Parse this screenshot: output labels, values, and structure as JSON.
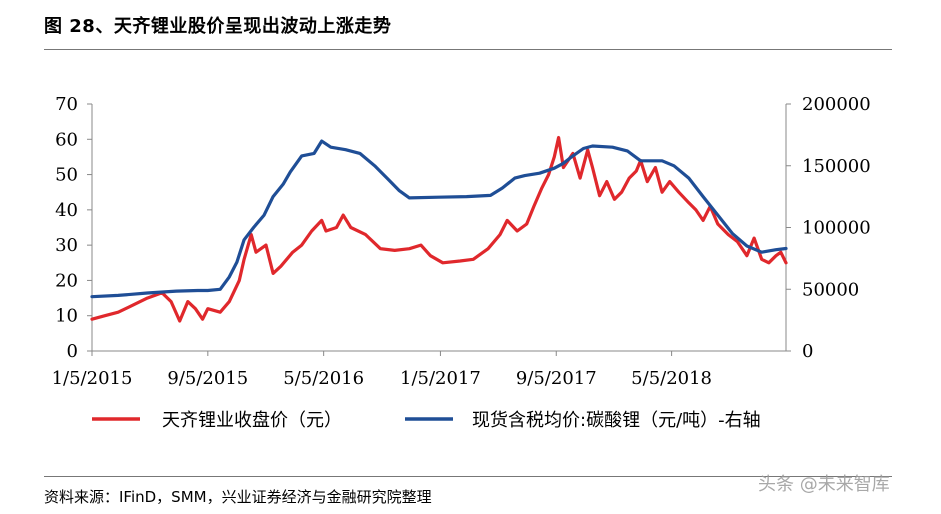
{
  "figure": {
    "title": "图 28、天齐锂业股价呈现出波动上涨走势",
    "source": "资料来源：IFinD，SMM，兴业证券经济与金融研究院整理",
    "watermark": "头条 @未来智库"
  },
  "colors": {
    "stock": "#e0282c",
    "lithium": "#1f4e96"
  },
  "chart_data": {
    "type": "line",
    "title": "图 28、天齐锂业股价呈现出波动上涨走势",
    "x_tick_labels": [
      "1/5/2015",
      "9/5/2015",
      "5/5/2016",
      "1/5/2017",
      "9/5/2017",
      "5/5/2018"
    ],
    "xlim": [
      "2015-01-05",
      "2018-12-31"
    ],
    "y_left": {
      "ticks": [
        "0",
        "10",
        "20",
        "30",
        "40",
        "50",
        "60",
        "70"
      ],
      "range": [
        0,
        70
      ]
    },
    "y_right": {
      "ticks": [
        "0",
        "50000",
        "100000",
        "150000",
        "200000"
      ],
      "range": [
        0,
        200000
      ]
    },
    "series": [
      {
        "name": "天齐锂业收盘价（元）",
        "axis": "left",
        "color": "#e0282c",
        "points": [
          [
            "2015-01-05",
            9
          ],
          [
            "2015-02-01",
            10
          ],
          [
            "2015-03-01",
            11
          ],
          [
            "2015-04-01",
            13
          ],
          [
            "2015-05-01",
            15
          ],
          [
            "2015-06-01",
            16.5
          ],
          [
            "2015-06-20",
            14
          ],
          [
            "2015-07-08",
            8.5
          ],
          [
            "2015-07-25",
            14
          ],
          [
            "2015-08-10",
            12
          ],
          [
            "2015-08-25",
            9
          ],
          [
            "2015-09-05",
            12
          ],
          [
            "2015-10-01",
            11
          ],
          [
            "2015-10-20",
            14
          ],
          [
            "2015-11-10",
            20
          ],
          [
            "2015-11-20",
            26
          ],
          [
            "2015-12-05",
            33
          ],
          [
            "2015-12-15",
            28
          ],
          [
            "2016-01-05",
            30
          ],
          [
            "2016-01-20",
            22
          ],
          [
            "2016-02-05",
            24
          ],
          [
            "2016-03-01",
            28
          ],
          [
            "2016-03-20",
            30
          ],
          [
            "2016-04-10",
            34
          ],
          [
            "2016-05-01",
            37
          ],
          [
            "2016-05-10",
            34
          ],
          [
            "2016-06-01",
            35
          ],
          [
            "2016-06-15",
            38.5
          ],
          [
            "2016-07-01",
            35
          ],
          [
            "2016-08-01",
            33
          ],
          [
            "2016-09-01",
            29
          ],
          [
            "2016-10-01",
            28.5
          ],
          [
            "2016-11-01",
            29
          ],
          [
            "2016-11-25",
            30
          ],
          [
            "2016-12-15",
            27
          ],
          [
            "2017-01-10",
            25
          ],
          [
            "2017-02-15",
            25.5
          ],
          [
            "2017-03-15",
            26
          ],
          [
            "2017-04-15",
            29
          ],
          [
            "2017-05-10",
            33
          ],
          [
            "2017-05-25",
            37
          ],
          [
            "2017-06-15",
            34
          ],
          [
            "2017-07-05",
            36
          ],
          [
            "2017-07-20",
            41
          ],
          [
            "2017-08-05",
            46
          ],
          [
            "2017-08-20",
            50
          ],
          [
            "2017-09-01",
            55
          ],
          [
            "2017-09-10",
            60.5
          ],
          [
            "2017-09-20",
            52
          ],
          [
            "2017-10-10",
            56
          ],
          [
            "2017-10-25",
            49
          ],
          [
            "2017-11-10",
            57
          ],
          [
            "2017-11-20",
            52
          ],
          [
            "2017-12-05",
            44
          ],
          [
            "2017-12-20",
            48
          ],
          [
            "2018-01-05",
            43
          ],
          [
            "2018-01-20",
            45
          ],
          [
            "2018-02-05",
            49
          ],
          [
            "2018-02-20",
            51
          ],
          [
            "2018-03-01",
            54
          ],
          [
            "2018-03-15",
            48
          ],
          [
            "2018-04-01",
            52
          ],
          [
            "2018-04-15",
            45
          ],
          [
            "2018-05-01",
            48
          ],
          [
            "2018-05-20",
            45
          ],
          [
            "2018-06-10",
            42
          ],
          [
            "2018-06-25",
            40
          ],
          [
            "2018-07-10",
            37
          ],
          [
            "2018-07-25",
            41
          ],
          [
            "2018-08-10",
            36
          ],
          [
            "2018-09-01",
            33
          ],
          [
            "2018-09-20",
            31
          ],
          [
            "2018-10-10",
            27
          ],
          [
            "2018-10-25",
            32
          ],
          [
            "2018-11-10",
            26
          ],
          [
            "2018-11-25",
            25
          ],
          [
            "2018-12-10",
            27
          ],
          [
            "2018-12-20",
            28
          ],
          [
            "2018-12-31",
            25
          ]
        ]
      },
      {
        "name": "现货含税均价:碳酸锂（元/吨）-右轴",
        "axis": "right",
        "color": "#1f4e96",
        "points": [
          [
            "2015-01-05",
            44000
          ],
          [
            "2015-03-01",
            45000
          ],
          [
            "2015-05-01",
            47000
          ],
          [
            "2015-07-01",
            48500
          ],
          [
            "2015-08-15",
            49000
          ],
          [
            "2015-09-05",
            49000
          ],
          [
            "2015-10-01",
            50000
          ],
          [
            "2015-10-20",
            60000
          ],
          [
            "2015-11-05",
            72000
          ],
          [
            "2015-11-20",
            90000
          ],
          [
            "2015-12-10",
            100000
          ],
          [
            "2016-01-01",
            110000
          ],
          [
            "2016-01-20",
            125000
          ],
          [
            "2016-02-10",
            135000
          ],
          [
            "2016-02-25",
            145000
          ],
          [
            "2016-03-20",
            158000
          ],
          [
            "2016-04-15",
            160000
          ],
          [
            "2016-05-01",
            170000
          ],
          [
            "2016-05-20",
            165000
          ],
          [
            "2016-06-20",
            163000
          ],
          [
            "2016-07-20",
            160000
          ],
          [
            "2016-08-20",
            150000
          ],
          [
            "2016-09-15",
            140000
          ],
          [
            "2016-10-10",
            130000
          ],
          [
            "2016-11-01",
            124000
          ],
          [
            "2017-01-01",
            124500
          ],
          [
            "2017-03-01",
            125000
          ],
          [
            "2017-04-20",
            126000
          ],
          [
            "2017-05-15",
            132000
          ],
          [
            "2017-06-10",
            140000
          ],
          [
            "2017-07-01",
            142000
          ],
          [
            "2017-08-01",
            144000
          ],
          [
            "2017-09-01",
            148000
          ],
          [
            "2017-09-20",
            152000
          ],
          [
            "2017-10-10",
            158000
          ],
          [
            "2017-11-01",
            164000
          ],
          [
            "2017-11-20",
            166000
          ],
          [
            "2018-01-01",
            165000
          ],
          [
            "2018-02-01",
            162000
          ],
          [
            "2018-03-01",
            154000
          ],
          [
            "2018-04-15",
            154000
          ],
          [
            "2018-05-10",
            150000
          ],
          [
            "2018-06-10",
            140000
          ],
          [
            "2018-07-10",
            125000
          ],
          [
            "2018-08-10",
            110000
          ],
          [
            "2018-09-10",
            95000
          ],
          [
            "2018-10-10",
            85000
          ],
          [
            "2018-11-10",
            80000
          ],
          [
            "2018-12-10",
            82000
          ],
          [
            "2018-12-31",
            83000
          ]
        ]
      }
    ]
  }
}
